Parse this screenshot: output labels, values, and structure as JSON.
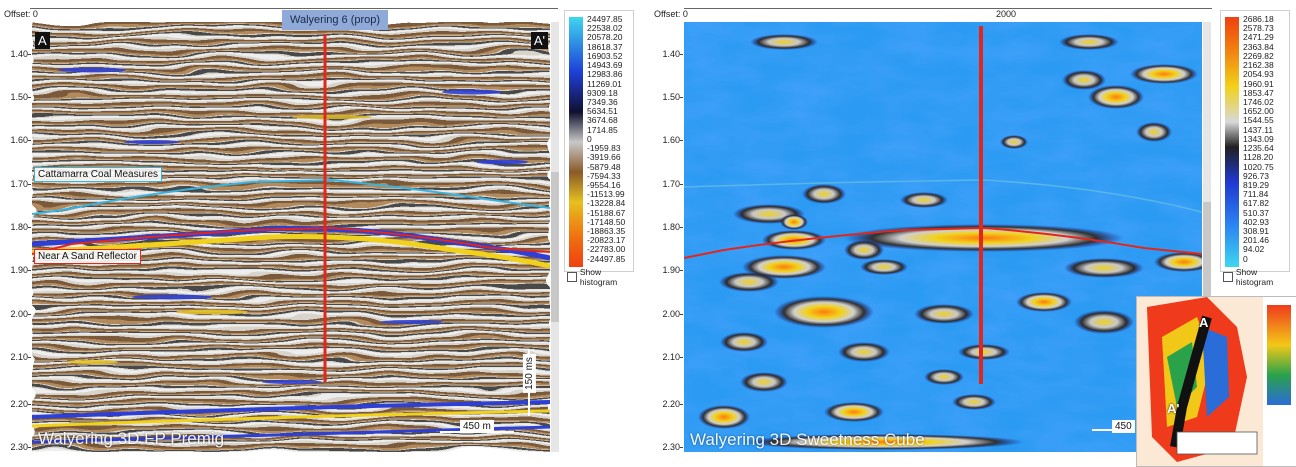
{
  "left": {
    "offset_label": "Offset:",
    "offset_value": "0",
    "well_name": "Walyering 6 (prop)",
    "marker_a": "A",
    "marker_a_prime": "A'",
    "horizon_top": "Cattamarra Coal Measures",
    "horizon_bottom": "Near A Sand Reflector",
    "watermark": "Walyering 3D FP Premig",
    "scale_vertical": "150 ms",
    "scale_horizontal": "450 m",
    "y_ticks": [
      "1.40",
      "1.50",
      "1.60",
      "1.70",
      "1.80",
      "1.90",
      "2.00",
      "2.10",
      "2.20",
      "2.30"
    ],
    "colorbar_labels": [
      "24497.85",
      "22538.02",
      "20578.20",
      "18618.37",
      "16903.52",
      "14943.69",
      "12983.86",
      "11269.01",
      "9309.18",
      "7349.36",
      "5634.51",
      "3674.68",
      "1714.85",
      "0",
      "-1959.83",
      "-3919.66",
      "-5879.48",
      "-7594.33",
      "-9554.16",
      "-11513.99",
      "-13228.84",
      "-15188.67",
      "-17148.50",
      "-18863.35",
      "-20823.17",
      "-22783.00",
      "-24497.85"
    ],
    "show_histogram": "Show histogram",
    "colors": {
      "well": "#e3261b",
      "horizon_top": "#38b3e0",
      "horizon_bottom": "#e3261b"
    }
  },
  "right": {
    "offset_label": "Offset:",
    "offset_value": "0",
    "offset_tick": "2000",
    "watermark": "Walyering 3D Sweetness Cube",
    "scale_horizontal": "450",
    "inset_a": "A",
    "inset_a_prime": "A'",
    "y_ticks": [
      "1.40",
      "1.50",
      "1.60",
      "1.70",
      "1.80",
      "1.90",
      "2.00",
      "2.10",
      "2.20",
      "2.30"
    ],
    "colorbar_labels": [
      "2686.18",
      "2578.73",
      "2471.29",
      "2363.84",
      "2269.82",
      "2162.38",
      "2054.93",
      "1960.91",
      "1853.47",
      "1746.02",
      "1652.00",
      "1544.55",
      "1437.11",
      "1343.09",
      "1235.64",
      "1128.20",
      "1020.75",
      "926.73",
      "819.29",
      "711.84",
      "617.82",
      "510.37",
      "402.93",
      "308.91",
      "201.46",
      "94.02",
      "0"
    ],
    "show_histogram": "Show histogram"
  }
}
